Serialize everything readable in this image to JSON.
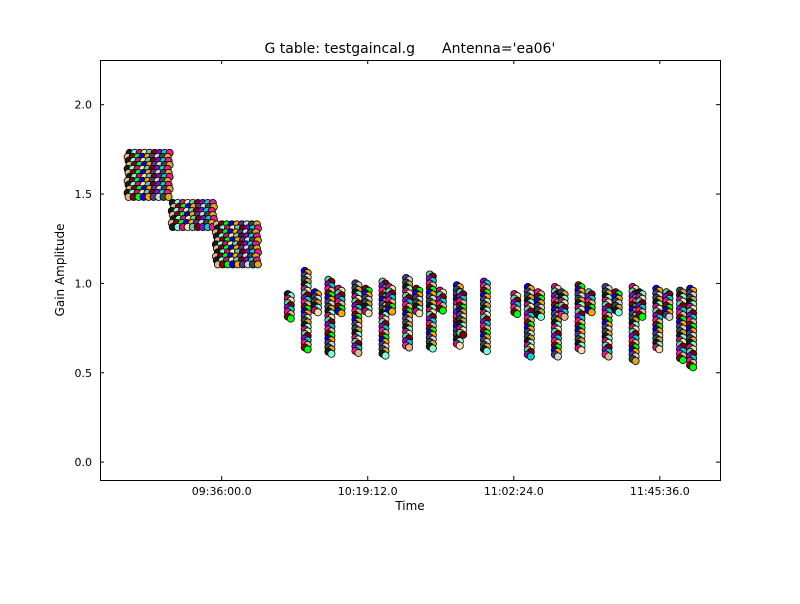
{
  "chart_data": {
    "type": "scatter",
    "title_left": "G table: testgaincal.g",
    "title_right": "Antenna='ea06'",
    "xlabel": "Time",
    "ylabel": "Gain Amplitude",
    "xlim": [
      "09:00:00",
      "12:03:24"
    ],
    "ylim": [
      -0.1,
      2.25
    ],
    "xticks": [
      "09:36:00.0",
      "10:19:12.0",
      "11:02:24.0",
      "11:45:36.0"
    ],
    "yticks": [
      "0.0",
      "0.5",
      "1.0",
      "1.5",
      "2.0"
    ],
    "grid": false,
    "marker_colors": [
      "#1a1a1a",
      "#7fffd4",
      "#c71585",
      "#ffdead",
      "#66cdaa",
      "#800000",
      "#9400d3",
      "#00ced1",
      "#ff1493",
      "#deb887",
      "#8b0000",
      "#00ff00",
      "#0000ff",
      "#ffa500",
      "#483d8b",
      "#d3d3d3",
      "#2f4f4f",
      "#daa520"
    ],
    "blocks": [
      {
        "t_start": "09:08",
        "t_end": "09:21",
        "amp_min": 1.48,
        "amp_max": 1.73
      },
      {
        "t_start": "09:21",
        "t_end": "09:34",
        "amp_min": 1.3,
        "amp_max": 1.45
      },
      {
        "t_start": "09:34",
        "t_end": "09:47",
        "amp_min": 1.1,
        "amp_max": 1.33
      }
    ],
    "scans": [
      {
        "t": "09:56",
        "amp_min": 0.79,
        "amp_max": 0.94
      },
      {
        "t": "10:01",
        "amp_min": 0.63,
        "amp_max": 1.07
      },
      {
        "t": "10:04",
        "amp_min": 0.84,
        "amp_max": 0.95
      },
      {
        "t": "10:08",
        "amp_min": 0.6,
        "amp_max": 1.02
      },
      {
        "t": "10:11",
        "amp_min": 0.84,
        "amp_max": 0.97
      },
      {
        "t": "10:16",
        "amp_min": 0.6,
        "amp_max": 1.0
      },
      {
        "t": "10:19",
        "amp_min": 0.84,
        "amp_max": 0.97
      },
      {
        "t": "10:24",
        "amp_min": 0.6,
        "amp_max": 1.01
      },
      {
        "t": "10:26",
        "amp_min": 0.84,
        "amp_max": 0.98
      },
      {
        "t": "10:31",
        "amp_min": 0.65,
        "amp_max": 1.03
      },
      {
        "t": "10:34",
        "amp_min": 0.84,
        "amp_max": 0.97
      },
      {
        "t": "10:38",
        "amp_min": 0.64,
        "amp_max": 1.05
      },
      {
        "t": "10:41",
        "amp_min": 0.84,
        "amp_max": 0.96
      },
      {
        "t": "10:46",
        "amp_min": 0.64,
        "amp_max": 0.99
      },
      {
        "t": "10:47",
        "amp_min": 0.7,
        "amp_max": 0.95
      },
      {
        "t": "10:54",
        "amp_min": 0.63,
        "amp_max": 1.01
      },
      {
        "t": "11:03",
        "amp_min": 0.82,
        "amp_max": 0.94
      },
      {
        "t": "11:07",
        "amp_min": 0.6,
        "amp_max": 0.98
      },
      {
        "t": "11:10",
        "amp_min": 0.82,
        "amp_max": 0.95
      },
      {
        "t": "11:15",
        "amp_min": 0.6,
        "amp_max": 0.98
      },
      {
        "t": "11:17",
        "amp_min": 0.82,
        "amp_max": 0.95
      },
      {
        "t": "11:22",
        "amp_min": 0.62,
        "amp_max": 0.99
      },
      {
        "t": "11:25",
        "amp_min": 0.83,
        "amp_max": 0.95
      },
      {
        "t": "11:30",
        "amp_min": 0.6,
        "amp_max": 0.98
      },
      {
        "t": "11:33",
        "amp_min": 0.83,
        "amp_max": 0.95
      },
      {
        "t": "11:38",
        "amp_min": 0.56,
        "amp_max": 0.98
      },
      {
        "t": "11:40",
        "amp_min": 0.82,
        "amp_max": 0.95
      },
      {
        "t": "11:45",
        "amp_min": 0.63,
        "amp_max": 0.97
      },
      {
        "t": "11:48",
        "amp_min": 0.82,
        "amp_max": 0.95
      },
      {
        "t": "11:52",
        "amp_min": 0.58,
        "amp_max": 0.96
      },
      {
        "t": "11:55",
        "amp_min": 0.52,
        "amp_max": 0.97
      }
    ]
  }
}
